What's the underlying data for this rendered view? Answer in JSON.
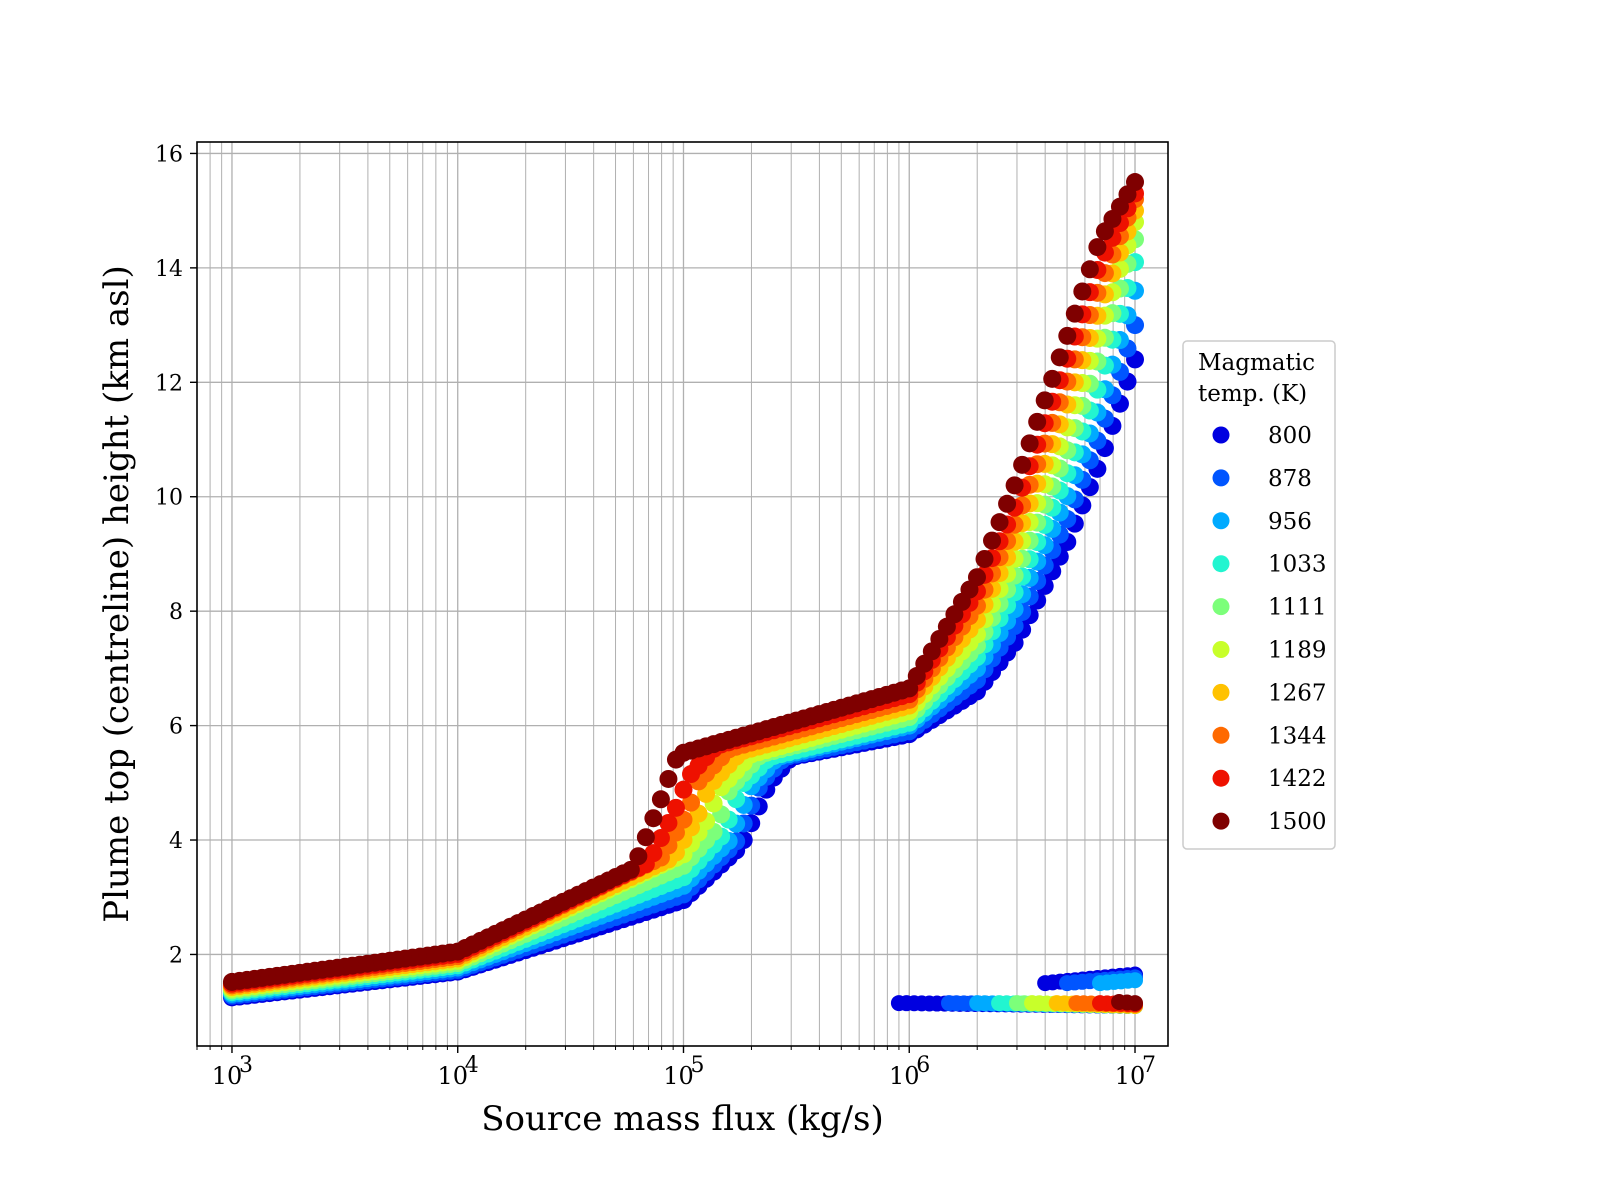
{
  "chart_data": {
    "type": "scatter",
    "xlabel": "Source mass flux (kg/s)",
    "ylabel": "Plume top (centreline) height (km asl)",
    "x_scale": "log",
    "xlim": [
      700,
      14000000
    ],
    "ylim": [
      0.4,
      16.2
    ],
    "grid": true,
    "x_ticks": [
      1000,
      10000,
      100000,
      1000000,
      10000000
    ],
    "x_tick_labels": [
      {
        "base": "10",
        "exp": "3"
      },
      {
        "base": "10",
        "exp": "4"
      },
      {
        "base": "10",
        "exp": "5"
      },
      {
        "base": "10",
        "exp": "6"
      },
      {
        "base": "10",
        "exp": "7"
      }
    ],
    "y_ticks": [
      2,
      4,
      6,
      8,
      10,
      12,
      14,
      16
    ],
    "y_tick_labels": [
      "2",
      "4",
      "6",
      "8",
      "10",
      "12",
      "14",
      "16"
    ],
    "legend": {
      "title_lines": [
        "Magmatic",
        "temp. (K)"
      ],
      "placement": "outside-right"
    },
    "series": [
      {
        "name": "800",
        "color": "#0000e0",
        "upper": [
          [
            1000,
            1.25
          ],
          [
            10000,
            1.7
          ],
          [
            100000,
            2.95
          ],
          [
            180000,
            3.9
          ],
          [
            240000,
            5.0
          ],
          [
            300000,
            5.45
          ],
          [
            1000000,
            5.85
          ],
          [
            2000000,
            6.6
          ],
          [
            3000000,
            7.5
          ],
          [
            5000000,
            9.2
          ],
          [
            7000000,
            10.6
          ],
          [
            10000000,
            12.4
          ]
        ],
        "lower_x": [
          900000,
          10000000
        ],
        "lower_y": [
          1.15,
          1.1
        ],
        "lower_extra": [
          [
            4000000,
            1.5
          ],
          [
            10000000,
            1.65
          ]
        ]
      },
      {
        "name": "878",
        "color": "#0055ff",
        "upper": [
          [
            1000,
            1.28
          ],
          [
            10000,
            1.73
          ],
          [
            100000,
            3.05
          ],
          [
            170000,
            3.95
          ],
          [
            220000,
            5.0
          ],
          [
            280000,
            5.45
          ],
          [
            1000000,
            5.9
          ],
          [
            2000000,
            6.8
          ],
          [
            3000000,
            7.8
          ],
          [
            5000000,
            9.6
          ],
          [
            7000000,
            11.1
          ],
          [
            10000000,
            13.0
          ]
        ],
        "lower_x": [
          1500000,
          10000000
        ],
        "lower_y": [
          1.15,
          1.1
        ],
        "lower_extra": [
          [
            5000000,
            1.5
          ],
          [
            10000000,
            1.6
          ]
        ]
      },
      {
        "name": "956",
        "color": "#00aaff",
        "upper": [
          [
            1000,
            1.31
          ],
          [
            10000,
            1.77
          ],
          [
            100000,
            3.2
          ],
          [
            160000,
            4.0
          ],
          [
            200000,
            4.95
          ],
          [
            260000,
            5.45
          ],
          [
            1000000,
            6.0
          ],
          [
            2000000,
            7.0
          ],
          [
            3000000,
            8.1
          ],
          [
            5000000,
            10.0
          ],
          [
            7000000,
            11.6
          ],
          [
            10000000,
            13.6
          ]
        ],
        "lower_x": [
          2000000,
          10000000
        ],
        "lower_y": [
          1.15,
          1.1
        ],
        "lower_extra": [
          [
            7000000,
            1.5
          ],
          [
            10000000,
            1.55
          ]
        ]
      },
      {
        "name": "1033",
        "color": "#22f5d0",
        "upper": [
          [
            1000,
            1.34
          ],
          [
            10000,
            1.81
          ],
          [
            100000,
            3.35
          ],
          [
            150000,
            4.1
          ],
          [
            180000,
            4.95
          ],
          [
            240000,
            5.45
          ],
          [
            1000000,
            6.05
          ],
          [
            2000000,
            7.2
          ],
          [
            3000000,
            8.4
          ],
          [
            5000000,
            10.4
          ],
          [
            7000000,
            12.0
          ],
          [
            10000000,
            14.1
          ]
        ],
        "lower_x": [
          2500000,
          10000000
        ],
        "lower_y": [
          1.15,
          1.1
        ],
        "lower_extra": null
      },
      {
        "name": "1111",
        "color": "#7cff7a",
        "upper": [
          [
            1000,
            1.37
          ],
          [
            10000,
            1.85
          ],
          [
            100000,
            3.55
          ],
          [
            140000,
            4.2
          ],
          [
            160000,
            4.9
          ],
          [
            220000,
            5.5
          ],
          [
            1000000,
            6.15
          ],
          [
            2000000,
            7.4
          ],
          [
            3000000,
            8.7
          ],
          [
            5000000,
            10.8
          ],
          [
            7000000,
            12.5
          ],
          [
            10000000,
            14.5
          ]
        ],
        "lower_x": [
          3000000,
          10000000
        ],
        "lower_y": [
          1.15,
          1.1
        ],
        "lower_extra": null
      },
      {
        "name": "1189",
        "color": "#c8ff2a",
        "upper": [
          [
            1000,
            1.4
          ],
          [
            10000,
            1.89
          ],
          [
            100000,
            3.75
          ],
          [
            125000,
            4.3
          ],
          [
            145000,
            4.9
          ],
          [
            200000,
            5.5
          ],
          [
            1000000,
            6.25
          ],
          [
            2000000,
            7.6
          ],
          [
            3000000,
            9.0
          ],
          [
            5000000,
            11.2
          ],
          [
            7000000,
            12.9
          ],
          [
            10000000,
            14.8
          ]
        ],
        "lower_x": [
          3500000,
          10000000
        ],
        "lower_y": [
          1.15,
          1.1
        ],
        "lower_extra": null
      },
      {
        "name": "1267",
        "color": "#ffc200",
        "upper": [
          [
            1000,
            1.43
          ],
          [
            10000,
            1.93
          ],
          [
            90000,
            3.7
          ],
          [
            115000,
            4.4
          ],
          [
            130000,
            4.95
          ],
          [
            180000,
            5.55
          ],
          [
            1000000,
            6.35
          ],
          [
            2000000,
            7.85
          ],
          [
            3000000,
            9.3
          ],
          [
            5000000,
            11.6
          ],
          [
            7000000,
            13.3
          ],
          [
            10000000,
            15.0
          ]
        ],
        "lower_x": [
          4500000,
          10000000
        ],
        "lower_y": [
          1.15,
          1.1
        ],
        "lower_extra": null
      },
      {
        "name": "1344",
        "color": "#ff6a00",
        "upper": [
          [
            1000,
            1.46
          ],
          [
            10000,
            1.97
          ],
          [
            80000,
            3.7
          ],
          [
            105000,
            4.5
          ],
          [
            115000,
            5.0
          ],
          [
            160000,
            5.6
          ],
          [
            1000000,
            6.45
          ],
          [
            2000000,
            8.1
          ],
          [
            3000000,
            9.6
          ],
          [
            5000000,
            12.0
          ],
          [
            7000000,
            13.7
          ],
          [
            10000000,
            15.2
          ]
        ],
        "lower_x": [
          5500000,
          10000000
        ],
        "lower_y": [
          1.15,
          1.12
        ],
        "lower_extra": null
      },
      {
        "name": "1422",
        "color": "#ee1100",
        "upper": [
          [
            1000,
            1.49
          ],
          [
            10000,
            2.01
          ],
          [
            70000,
            3.6
          ],
          [
            95000,
            4.65
          ],
          [
            105000,
            5.1
          ],
          [
            140000,
            5.65
          ],
          [
            1000000,
            6.55
          ],
          [
            2000000,
            8.35
          ],
          [
            3000000,
            9.9
          ],
          [
            5000000,
            12.4
          ],
          [
            7000000,
            14.1
          ],
          [
            10000000,
            15.3
          ]
        ],
        "lower_x": [
          7000000,
          10000000
        ],
        "lower_y": [
          1.15,
          1.13
        ],
        "lower_extra": null
      },
      {
        "name": "1500",
        "color": "#7f0000",
        "upper": [
          [
            1000,
            1.52
          ],
          [
            10000,
            2.05
          ],
          [
            60000,
            3.5
          ],
          [
            82000,
            4.85
          ],
          [
            90000,
            5.3
          ],
          [
            95000,
            5.5
          ],
          [
            1000000,
            6.65
          ],
          [
            2000000,
            8.6
          ],
          [
            3000000,
            10.3
          ],
          [
            5000000,
            12.8
          ],
          [
            7000000,
            14.5
          ],
          [
            10000000,
            15.5
          ]
        ],
        "lower_x": [
          8500000,
          10000000
        ],
        "lower_y": [
          1.17,
          1.15
        ],
        "lower_extra": null
      }
    ]
  }
}
